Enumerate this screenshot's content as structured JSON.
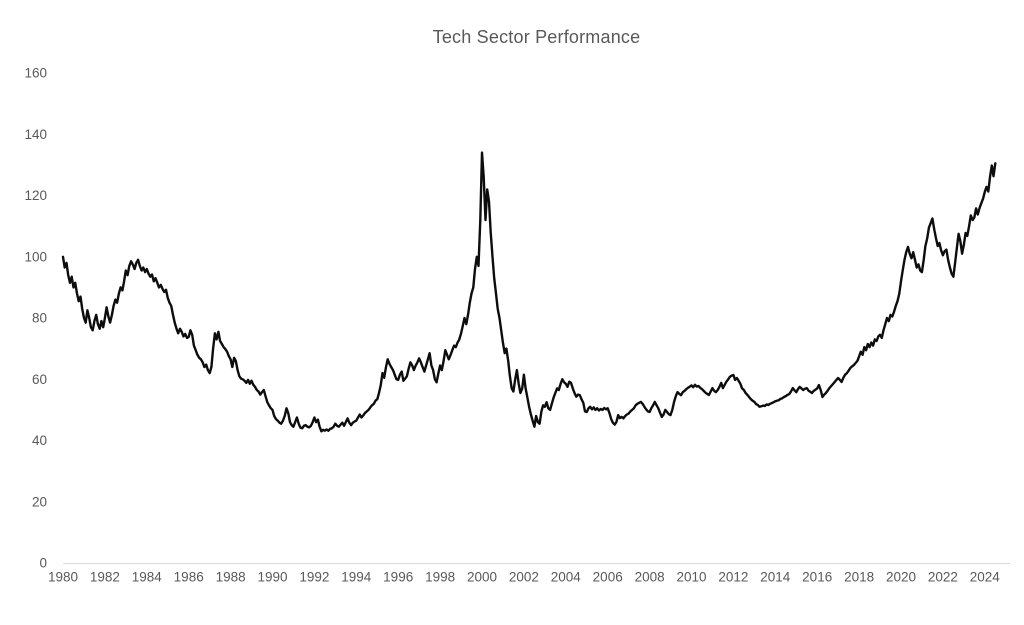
{
  "chart": {
    "title": "Tech Sector Performance",
    "colors": {
      "line": "#0d0d0d",
      "axis_line": "#d9d9d9",
      "tick_text": "#595959",
      "title_text": "#595959",
      "background": "#ffffff"
    }
  },
  "chart_data": {
    "type": "line",
    "title": "Tech Sector Performance",
    "xlabel": "",
    "ylabel": "",
    "legend": "none",
    "grid": "off",
    "ylim": [
      0,
      160
    ],
    "yticks": [
      0,
      20,
      40,
      60,
      80,
      100,
      120,
      140,
      160
    ],
    "xticks": [
      1980,
      1982,
      1984,
      1986,
      1988,
      1990,
      1992,
      1994,
      1996,
      1998,
      2000,
      2002,
      2004,
      2006,
      2008,
      2010,
      2012,
      2014,
      2016,
      2018,
      2020,
      2022,
      2024
    ],
    "x_start": 1980,
    "x_end": 2024.5,
    "points_per_year": 12,
    "values": [
      100,
      96.5,
      98,
      94,
      91.5,
      93.5,
      90,
      91.5,
      88,
      85.5,
      87,
      83,
      80,
      78.5,
      82.5,
      80,
      77,
      76,
      79,
      81,
      78,
      76.5,
      79,
      77,
      80,
      83.5,
      80.5,
      78.5,
      81,
      84,
      86,
      85,
      88,
      90,
      89,
      92,
      95.5,
      94,
      97,
      98.5,
      97.5,
      96,
      98,
      99,
      97,
      95.5,
      96.5,
      95,
      96,
      94.5,
      93.5,
      94.2,
      92,
      93,
      91.5,
      90,
      90.8,
      89.5,
      88.5,
      89.2,
      86.5,
      85,
      84,
      81,
      78.5,
      76.5,
      75,
      76.5,
      75.5,
      74,
      74.8,
      73.5,
      73.8,
      76,
      74.5,
      71,
      69.5,
      68,
      67,
      66.5,
      65.5,
      64,
      64.8,
      63,
      62,
      64,
      70,
      75,
      73,
      75.5,
      72.5,
      71.5,
      70.5,
      69.8,
      69,
      67.5,
      66.5,
      64,
      67,
      66,
      63,
      61,
      60.2,
      60,
      59.5,
      58.8,
      59.8,
      58.5,
      59.5,
      58.2,
      57.5,
      56.5,
      56,
      55,
      55.8,
      56.5,
      54.5,
      52.5,
      51.5,
      50.5,
      50,
      48,
      47,
      46.5,
      45.8,
      45.5,
      46.5,
      48,
      50.5,
      49,
      46,
      45,
      44.5,
      46,
      47.5,
      45.5,
      44.2,
      44,
      44.8,
      45,
      44.5,
      44.3,
      44.8,
      46,
      47.5,
      46,
      46.8,
      44.5,
      43,
      43.5,
      43.2,
      43.6,
      43.2,
      43.8,
      44,
      44.5,
      45.5,
      44.8,
      44.5,
      45.2,
      45.8,
      44.8,
      46,
      47.2,
      45.8,
      45,
      45.8,
      46.2,
      46.5,
      47.5,
      48.5,
      47.5,
      48.2,
      49,
      49.5,
      50,
      50.8,
      51.5,
      52,
      53,
      53.5,
      55.5,
      58,
      62,
      60.5,
      64,
      66.5,
      65,
      64,
      63,
      61.5,
      60,
      59.8,
      61.5,
      62.5,
      59.5,
      60.2,
      61,
      63.5,
      65.5,
      64.5,
      63,
      64.5,
      65.5,
      66.8,
      65.5,
      64,
      62.5,
      64.5,
      66.5,
      68.5,
      64.5,
      63,
      60,
      59,
      62,
      64.5,
      63,
      66,
      69.5,
      68,
      66.5,
      68,
      69.5,
      71,
      70.5,
      72,
      73,
      75,
      77.5,
      80,
      78,
      81,
      85,
      88,
      90,
      96,
      100,
      97,
      112,
      134,
      126,
      112,
      122,
      118,
      108,
      100,
      93,
      88,
      83,
      80,
      76,
      72,
      68.5,
      70,
      66,
      61,
      57,
      56,
      60,
      63,
      58.5,
      55.5,
      57,
      61.5,
      57,
      54,
      51,
      48.5,
      46.5,
      44.5,
      48,
      46,
      45.5,
      49.5,
      51.5,
      51,
      52.5,
      50.5,
      50,
      52,
      54,
      55.5,
      57,
      56.5,
      58.5,
      60,
      59,
      58.5,
      57.5,
      59.2,
      58.8,
      57,
      55.5,
      54.3,
      55,
      54.8,
      53.5,
      52.3,
      49.5,
      49.3,
      50.5,
      51,
      50.2,
      50.8,
      50,
      50.5,
      49.8,
      50.3,
      50,
      50.6,
      50.2,
      50.5,
      49,
      47,
      45.8,
      45.2,
      46,
      48.3,
      47.3,
      47.7,
      47.2,
      48,
      48.5,
      48.8,
      49.5,
      50,
      50.5,
      51.5,
      52,
      52.3,
      52.6,
      52,
      51,
      50.2,
      49.5,
      49.3,
      50.5,
      51.5,
      52.6,
      51.5,
      50.5,
      49,
      47.7,
      48.5,
      50,
      49.3,
      48.6,
      48.3,
      50,
      52.5,
      54.5,
      55.8,
      55.2,
      54.8,
      55.8,
      56.2,
      56.8,
      57.2,
      57.6,
      58,
      57.4,
      58.2,
      57.6,
      57.8,
      57.2,
      56.8,
      56.2,
      55.6,
      55.2,
      54.9,
      56,
      57.1,
      56.2,
      55.8,
      56.5,
      57.5,
      58.8,
      57.1,
      58.2,
      59.2,
      60,
      60.8,
      61.2,
      61.4,
      59.8,
      60.4,
      59.5,
      58.5,
      57,
      56.5,
      55.5,
      54.9,
      54.2,
      53.5,
      53,
      52.6,
      51.9,
      51.6,
      51,
      51.2,
      51.4,
      51.3,
      51.8,
      51.6,
      52,
      52.2,
      52.5,
      52.8,
      53,
      53.2,
      53.6,
      53.8,
      54.2,
      54.5,
      54.9,
      55.2,
      56,
      57.1,
      56.4,
      55.8,
      56.8,
      57.5,
      57,
      56.5,
      56.9,
      57.1,
      56.3,
      55.9,
      55.5,
      56.2,
      56.6,
      57,
      58.1,
      56.5,
      54.2,
      55,
      55.5,
      56.3,
      57.1,
      57.8,
      58.4,
      59.1,
      59.8,
      60.4,
      59.8,
      59.1,
      60.5,
      61.5,
      62,
      62.8,
      63.7,
      64.2,
      64.7,
      65.3,
      66,
      67.5,
      69,
      68,
      70.5,
      69.5,
      71.5,
      70.5,
      72,
      71,
      73,
      72.5,
      74,
      74.5,
      73.5,
      76,
      78,
      80,
      79,
      81,
      80.5,
      82,
      84,
      85.5,
      88,
      92,
      95.5,
      99,
      101.5,
      103.2,
      101,
      99.5,
      101.5,
      99,
      96.5,
      97.5,
      95.5,
      95,
      99,
      103.5,
      106,
      109.5,
      111,
      112.5,
      109,
      106.2,
      103.5,
      104.5,
      102,
      100.5,
      101.8,
      102.3,
      99,
      96.5,
      94.5,
      93.5,
      98,
      103,
      107.5,
      105,
      101,
      104,
      107.8,
      106.8,
      110,
      113.5,
      112,
      112.8,
      115.8,
      113.8,
      116,
      117.5,
      119,
      121.2,
      122.8,
      121.3,
      126,
      129.8,
      126.3,
      130.5
    ]
  }
}
